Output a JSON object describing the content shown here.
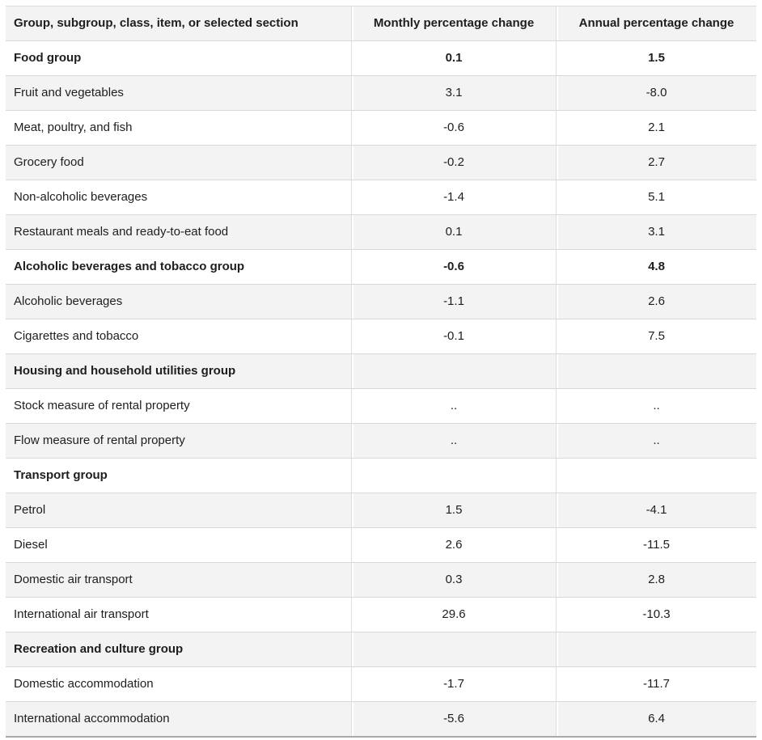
{
  "chart_data": {
    "type": "table",
    "columns": [
      "Group, subgroup, class, item, or selected section",
      "Monthly percentage change",
      "Annual percentage change"
    ],
    "rows": [
      {
        "label": "Food group",
        "monthly": "0.1",
        "annual": "1.5",
        "bold": true
      },
      {
        "label": "Fruit and vegetables",
        "monthly": "3.1",
        "annual": "-8.0",
        "bold": false
      },
      {
        "label": "Meat, poultry, and fish",
        "monthly": "-0.6",
        "annual": "2.1",
        "bold": false
      },
      {
        "label": "Grocery food",
        "monthly": "-0.2",
        "annual": "2.7",
        "bold": false
      },
      {
        "label": "Non-alcoholic beverages",
        "monthly": "-1.4",
        "annual": "5.1",
        "bold": false
      },
      {
        "label": "Restaurant meals and ready-to-eat food",
        "monthly": "0.1",
        "annual": "3.1",
        "bold": false
      },
      {
        "label": "Alcoholic beverages and tobacco group",
        "monthly": "-0.6",
        "annual": "4.8",
        "bold": true
      },
      {
        "label": "Alcoholic beverages",
        "monthly": "-1.1",
        "annual": "2.6",
        "bold": false
      },
      {
        "label": "Cigarettes and tobacco",
        "monthly": "-0.1",
        "annual": "7.5",
        "bold": false
      },
      {
        "label": "Housing and household utilities group",
        "monthly": "",
        "annual": "",
        "bold": true
      },
      {
        "label": "Stock measure of rental property",
        "monthly": "..",
        "annual": "..",
        "bold": false
      },
      {
        "label": "Flow measure of rental property",
        "monthly": "..",
        "annual": "..",
        "bold": false
      },
      {
        "label": "Transport group",
        "monthly": "",
        "annual": "",
        "bold": true
      },
      {
        "label": "Petrol",
        "monthly": "1.5",
        "annual": "-4.1",
        "bold": false
      },
      {
        "label": "Diesel",
        "monthly": "2.6",
        "annual": "-11.5",
        "bold": false
      },
      {
        "label": "Domestic air transport",
        "monthly": "0.3",
        "annual": "2.8",
        "bold": false
      },
      {
        "label": "International air transport",
        "monthly": "29.6",
        "annual": "-10.3",
        "bold": false
      },
      {
        "label": "Recreation and culture group",
        "monthly": "",
        "annual": "",
        "bold": true
      },
      {
        "label": "Domestic accommodation",
        "monthly": "-1.7",
        "annual": "-11.7",
        "bold": false
      },
      {
        "label": "International accommodation",
        "monthly": "-5.6",
        "annual": "6.4",
        "bold": false
      }
    ],
    "layout": {
      "grid": "horizontal row dividers, light vertical column separators",
      "zebra_striping": "header and alternate data rows shaded light grey"
    },
    "colors": {
      "shaded_row_bg": "#f3f3f3",
      "row_divider": "#d8d8d8",
      "table_bottom_border": "#a9a9a9",
      "text": "#1e1e1e"
    }
  }
}
